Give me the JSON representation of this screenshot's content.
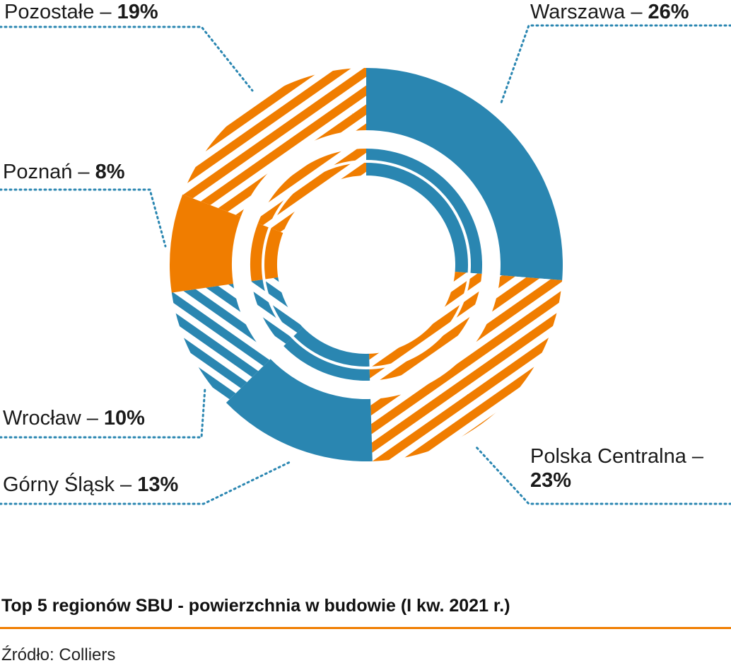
{
  "colors": {
    "blue": "#2a86b1",
    "orange": "#f07d00",
    "rule": "#f07d00"
  },
  "chart_data": {
    "type": "pie",
    "style": "donut, hatched and solid segments, with inner echo ring",
    "title": "Top 5 regionów SBU - powierzchnia w budowie (I kw. 2021 r.)",
    "unit": "%",
    "slices": [
      {
        "label": "Warszawa",
        "value": 26,
        "value_text": "26%",
        "color": "#2a86b1",
        "fill": "solid"
      },
      {
        "label": "Polska Centralna",
        "value": 23,
        "value_text": "23%",
        "color": "#f07d00",
        "fill": "hatched"
      },
      {
        "label": "Górny Śląsk",
        "value": 13,
        "value_text": "13%",
        "color": "#2a86b1",
        "fill": "solid"
      },
      {
        "label": "Wrocław",
        "value": 10,
        "value_text": "10%",
        "color": "#2a86b1",
        "fill": "hatched"
      },
      {
        "label": "Poznań",
        "value": 8,
        "value_text": "8%",
        "color": "#f07d00",
        "fill": "solid"
      },
      {
        "label": "Pozostałe",
        "value": 19,
        "value_text": "19%",
        "color": "#f07d00",
        "fill": "hatched"
      }
    ]
  },
  "labels": {
    "warszawa": {
      "name": "Warszawa –",
      "value": "26%"
    },
    "polska_centralna": {
      "name": "Polska Centralna –",
      "value": "23%"
    },
    "gorny_slask": {
      "name": "Górny Śląsk –",
      "value": "13%"
    },
    "wroclaw": {
      "name": "Wrocław –",
      "value": "10%"
    },
    "poznan": {
      "name": "Poznań –",
      "value": "8%"
    },
    "pozostale": {
      "name": "Pozostałe –",
      "value": "19%"
    }
  },
  "caption": "Top 5 regionów SBU - powierzchnia w budowie (I kw. 2021 r.)",
  "source": "Źródło: Colliers"
}
